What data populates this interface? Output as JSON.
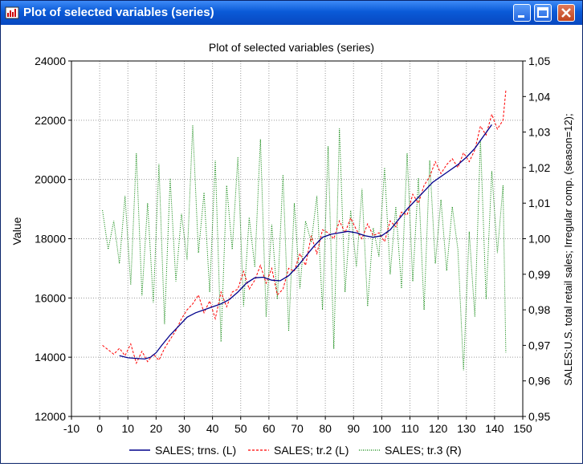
{
  "window": {
    "title": "Plot of selected variables (series)"
  },
  "icons": {
    "app": "plot-icon",
    "minimize": "minimize-icon",
    "maximize": "maximize-icon",
    "close": "close-icon"
  },
  "colors": {
    "titlebar": "#0a5ad7",
    "trns": "#00008b",
    "tr2": "#ff0000",
    "tr3": "#008000"
  },
  "chart_data": {
    "type": "line",
    "title": "Plot of selected variables (series)",
    "xlabel": "",
    "ylabel": "Value",
    "ylabel_right": "SALES:U.S. total retail sales; Irregular comp. (season=12);",
    "xlim": [
      -10,
      150
    ],
    "ylim": [
      12000,
      24000
    ],
    "ylim_right": [
      0.95,
      1.05
    ],
    "x_ticks": [
      "-10",
      "0",
      "10",
      "20",
      "30",
      "40",
      "50",
      "60",
      "70",
      "80",
      "90",
      "100",
      "110",
      "120",
      "130",
      "140",
      "150"
    ],
    "y_ticks": [
      "12000",
      "14000",
      "16000",
      "18000",
      "20000",
      "22000",
      "24000"
    ],
    "y_ticks_right": [
      "0,95",
      "0,96",
      "0,97",
      "0,98",
      "0,99",
      "1,00",
      "1,01",
      "1,02",
      "1,03",
      "1,04",
      "1,05"
    ],
    "grid": true,
    "legend_position": "bottom",
    "series": [
      {
        "name": "SALES; trns. (L)",
        "axis": "left",
        "style": "solid",
        "x": [
          7,
          10,
          13,
          16,
          18,
          20,
          22,
          25,
          28,
          31,
          34,
          37,
          40,
          43,
          46,
          49,
          52,
          55,
          58,
          61,
          64,
          67,
          70,
          73,
          76,
          79,
          82,
          85,
          88,
          91,
          94,
          97,
          100,
          103,
          106,
          109,
          112,
          115,
          118,
          121,
          124,
          127,
          130,
          133,
          136,
          139
        ],
        "y": [
          14050,
          13980,
          13960,
          13940,
          14000,
          14150,
          14400,
          14750,
          15050,
          15350,
          15500,
          15600,
          15700,
          15800,
          15950,
          16200,
          16500,
          16680,
          16700,
          16600,
          16580,
          16750,
          17050,
          17400,
          17750,
          18050,
          18150,
          18200,
          18250,
          18200,
          18100,
          18050,
          18100,
          18300,
          18650,
          19000,
          19300,
          19600,
          19900,
          20100,
          20300,
          20500,
          20750,
          21050,
          21450,
          21850
        ]
      },
      {
        "name": "SALES; tr.2 (L)",
        "axis": "left",
        "style": "dashed",
        "x": [
          1,
          3,
          5,
          7,
          9,
          11,
          13,
          15,
          17,
          19,
          21,
          23,
          25,
          27,
          29,
          31,
          33,
          35,
          37,
          39,
          41,
          43,
          45,
          47,
          49,
          51,
          53,
          55,
          57,
          59,
          61,
          63,
          65,
          67,
          69,
          71,
          73,
          75,
          77,
          79,
          81,
          83,
          85,
          87,
          89,
          91,
          93,
          95,
          97,
          99,
          101,
          103,
          105,
          107,
          109,
          111,
          113,
          115,
          117,
          119,
          121,
          123,
          125,
          127,
          129,
          131,
          133,
          135,
          137,
          139,
          141,
          143,
          144
        ],
        "y": [
          14400,
          14250,
          14100,
          14300,
          14050,
          14450,
          13800,
          14200,
          13850,
          14100,
          13900,
          14300,
          14600,
          14900,
          15300,
          15600,
          15800,
          16100,
          15500,
          15900,
          15300,
          16200,
          15700,
          16200,
          16300,
          16900,
          16300,
          16600,
          17100,
          16500,
          17000,
          16100,
          16300,
          17000,
          16900,
          17500,
          17100,
          18100,
          17500,
          18300,
          18200,
          18000,
          18600,
          18200,
          18700,
          18300,
          18000,
          18500,
          18100,
          18200,
          17900,
          18600,
          18400,
          18900,
          18800,
          19500,
          19200,
          19800,
          20100,
          20600,
          20200,
          20500,
          20700,
          20400,
          20900,
          20600,
          21000,
          21800,
          21500,
          22200,
          21700,
          22000,
          23000
        ]
      },
      {
        "name": "SALES; tr.3 (R)",
        "axis": "right",
        "style": "dotted",
        "x": [
          1,
          3,
          5,
          7,
          9,
          11,
          13,
          15,
          17,
          19,
          21,
          23,
          25,
          27,
          29,
          31,
          33,
          35,
          37,
          39,
          41,
          43,
          45,
          47,
          49,
          51,
          53,
          55,
          57,
          59,
          61,
          63,
          65,
          67,
          69,
          71,
          73,
          75,
          77,
          79,
          81,
          83,
          85,
          87,
          89,
          91,
          93,
          95,
          97,
          99,
          101,
          103,
          105,
          107,
          109,
          111,
          113,
          115,
          117,
          119,
          121,
          123,
          125,
          127,
          129,
          131,
          133,
          135,
          137,
          139,
          141,
          143,
          144
        ],
        "y": [
          1.008,
          0.997,
          1.005,
          0.993,
          1.012,
          0.987,
          1.024,
          0.984,
          1.01,
          0.982,
          1.021,
          0.976,
          1.017,
          0.988,
          1.007,
          0.994,
          1.032,
          0.996,
          1.013,
          0.985,
          1.022,
          0.971,
          1.015,
          0.997,
          1.023,
          0.981,
          1.006,
          0.992,
          1.028,
          0.978,
          1.004,
          0.983,
          1.018,
          0.974,
          1.01,
          0.986,
          1.005,
          0.999,
          1.012,
          0.98,
          1.026,
          0.969,
          1.031,
          0.985,
          1.008,
          0.992,
          1.014,
          0.981,
          1.003,
          0.995,
          1.02,
          0.99,
          1.009,
          0.986,
          1.024,
          0.988,
          1.017,
          0.98,
          1.022,
          0.993,
          1.011,
          0.991,
          1.009,
          0.997,
          0.963,
          1.002,
          0.978,
          1.028,
          0.983,
          1.019,
          0.996,
          1.015,
          0.968
        ]
      }
    ]
  }
}
